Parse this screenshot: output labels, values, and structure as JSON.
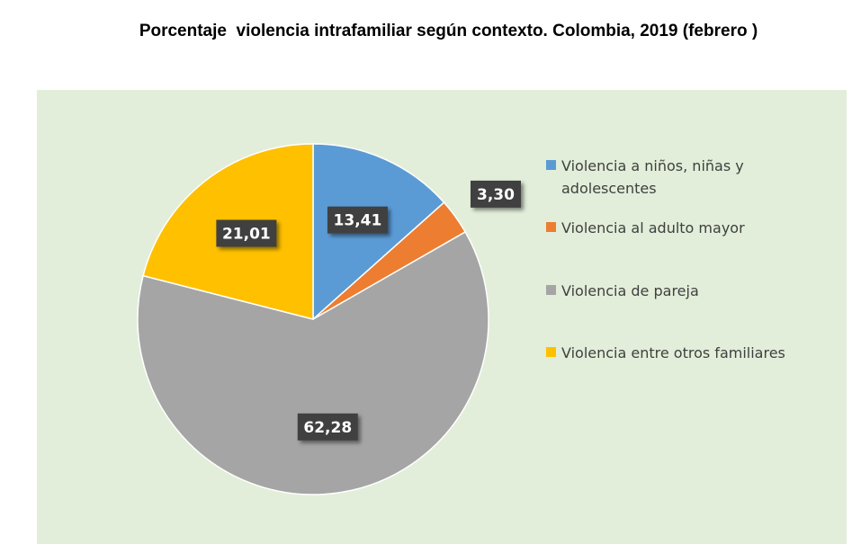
{
  "chart_data": {
    "type": "pie",
    "title": "Porcentaje  violencia intrafamiliar según contexto. Colombia, 2019 (febrero )",
    "slices": [
      {
        "label": "Violencia a niños, niñas y adolescentes",
        "value": 13.41,
        "display": "13,41",
        "color": "#5b9bd5"
      },
      {
        "label": "Violencia al adulto mayor",
        "value": 3.3,
        "display": "3,30",
        "color": "#ed7d31"
      },
      {
        "label": "Violencia de pareja",
        "value": 62.28,
        "display": "62,28",
        "color": "#a5a5a5"
      },
      {
        "label": "Violencia entre otros familiares",
        "value": 21.01,
        "display": "21,01",
        "color": "#ffc000"
      }
    ],
    "legend_position": "right",
    "background": "#e2eed9",
    "label_box_color": "#404040"
  }
}
